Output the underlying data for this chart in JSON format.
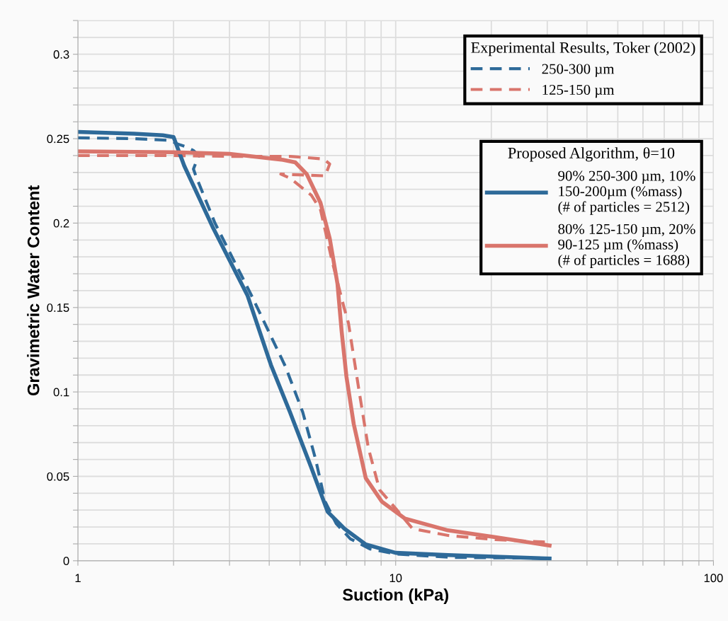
{
  "chart_data": {
    "type": "line",
    "xlabel": "Suction (kPa)",
    "ylabel": "Gravimetric Water Content",
    "log": "x",
    "grid": true,
    "legend": "top right",
    "legend_title": "Experimental Results, Toker (2002)",
    "annotations": [
      "Proposed Algorithm, θ=10"
    ],
    "xlim": [
      1,
      100
    ],
    "ylim": [
      0,
      0.32
    ],
    "xticks": [
      1,
      {
        "value": 2,
        "label": null
      },
      {
        "value": 3,
        "label": null
      },
      {
        "value": 4,
        "label": null
      },
      {
        "value": 5,
        "label": null
      },
      {
        "value": 6,
        "label": null
      },
      {
        "value": 7,
        "label": null
      },
      {
        "value": 8,
        "label": null
      },
      {
        "value": 9,
        "label": null
      },
      10,
      {
        "value": 20,
        "label": null
      },
      {
        "value": 30,
        "label": null
      },
      {
        "value": 40,
        "label": null
      },
      {
        "value": 50,
        "label": null
      },
      {
        "value": 60,
        "label": null
      },
      {
        "value": 70,
        "label": null
      },
      {
        "value": 80,
        "label": null
      },
      {
        "value": 90,
        "label": null
      },
      100
    ],
    "yticks": [
      0,
      {
        "value": 0.01,
        "label": null
      },
      {
        "value": 0.02,
        "label": null
      },
      {
        "value": 0.03,
        "label": null
      },
      {
        "value": 0.04,
        "label": null
      },
      0.05,
      {
        "value": 0.06,
        "label": null
      },
      {
        "value": 0.07,
        "label": null
      },
      {
        "value": 0.08,
        "label": null
      },
      {
        "value": 0.09,
        "label": null
      },
      0.1,
      {
        "value": 0.11,
        "label": null
      },
      {
        "value": 0.12,
        "label": null
      },
      {
        "value": 0.13,
        "label": null
      },
      {
        "value": 0.14,
        "label": null
      },
      0.15,
      {
        "value": 0.16,
        "label": null
      },
      {
        "value": 0.17,
        "label": null
      },
      {
        "value": 0.18,
        "label": null
      },
      {
        "value": 0.19,
        "label": null
      },
      0.2,
      {
        "value": 0.21,
        "label": null
      },
      {
        "value": 0.22,
        "label": null
      },
      {
        "value": 0.23,
        "label": null
      },
      {
        "value": 0.24,
        "label": null
      },
      0.25,
      {
        "value": 0.26,
        "label": null
      },
      {
        "value": 0.27,
        "label": null
      },
      {
        "value": 0.28,
        "label": null
      },
      {
        "value": 0.29,
        "label": null
      },
      0.3,
      {
        "value": 0.31,
        "label": null
      },
      {
        "value": 0.32,
        "label": null
      }
    ],
    "series": [
      {
        "name": "250-300 µm",
        "color": "#2e6a99",
        "line_style": "dashed",
        "x": [
          1,
          1.5,
          1.95,
          2.05,
          2.2,
          2.31,
          2.4,
          2.31,
          2.35,
          2.7,
          3.5,
          4.5,
          5.1,
          5.6,
          6.0,
          6.5,
          7.2,
          8.3,
          10,
          15,
          30
        ],
        "values": [
          0.2505,
          0.25,
          0.249,
          0.247,
          0.245,
          0.243,
          0.24,
          0.232,
          0.228,
          0.2,
          0.158,
          0.115,
          0.088,
          0.06,
          0.035,
          0.022,
          0.013,
          0.007,
          0.004,
          0.002,
          0.0015
        ]
      },
      {
        "name": "125-150 µm",
        "color": "#d9756c",
        "line_style": "dashed",
        "x": [
          1,
          2,
          3,
          4.66,
          5.93,
          6.2,
          6.0,
          4.35,
          4.66,
          5.43,
          5.8,
          6.3,
          6.9,
          7.1,
          7.65,
          8.2,
          8.9,
          10,
          11.3,
          14.6,
          20.6,
          30.5
        ],
        "values": [
          0.24,
          0.24,
          0.2395,
          0.2395,
          0.238,
          0.235,
          0.228,
          0.229,
          0.2265,
          0.2165,
          0.208,
          0.178,
          0.149,
          0.141,
          0.102,
          0.067,
          0.042,
          0.031,
          0.019,
          0.015,
          0.0125,
          0.011
        ]
      },
      {
        "name": "90% 250-300 µm, 10%\n150-200µm (%mass)\n(# of particles = 2512)",
        "color": "#2e6a99",
        "line_style": "solid",
        "x": [
          1,
          1.5,
          1.85,
          2.0,
          2.16,
          2.65,
          3.42,
          4.05,
          4.65,
          5.43,
          6.11,
          6.9,
          8.05,
          10,
          14.6,
          30.5
        ],
        "values": [
          0.254,
          0.253,
          0.252,
          0.251,
          0.234,
          0.198,
          0.157,
          0.116,
          0.088,
          0.055,
          0.029,
          0.019,
          0.0097,
          0.0047,
          0.0034,
          0.0013
        ]
      },
      {
        "name": "80% 125-150 µm, 20%\n90-125 µm (%mass)\n(# of particles = 1688)",
        "color": "#d9756c",
        "line_style": "solid",
        "x": [
          1,
          2,
          3,
          4.42,
          4.83,
          5.25,
          5.8,
          6.2,
          6.56,
          6.76,
          7.0,
          7.38,
          8.05,
          9.05,
          10.7,
          14.6,
          20.6,
          30.5
        ],
        "values": [
          0.2425,
          0.242,
          0.241,
          0.2375,
          0.236,
          0.229,
          0.212,
          0.191,
          0.164,
          0.136,
          0.109,
          0.081,
          0.049,
          0.035,
          0.025,
          0.018,
          0.014,
          0.009
        ]
      }
    ]
  }
}
